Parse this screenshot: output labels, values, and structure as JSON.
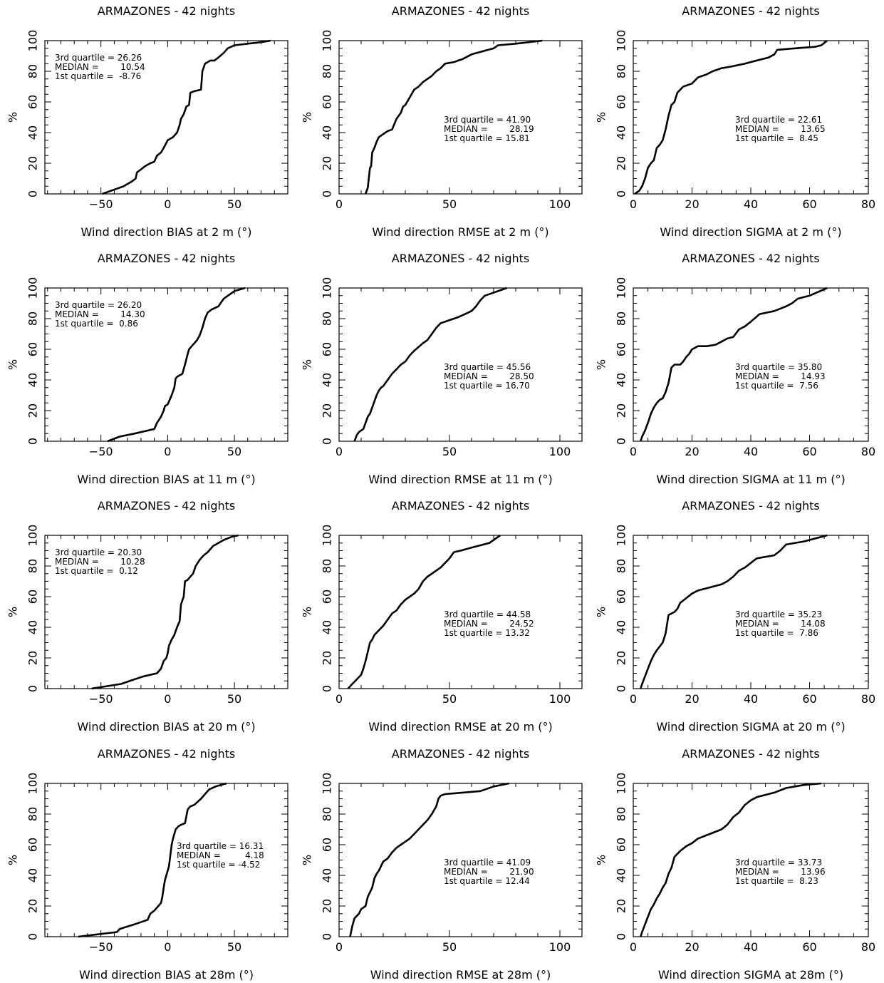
{
  "chart_data": [
    {
      "id": "p1",
      "type": "line",
      "title": "ARMAZONES - 42 nights",
      "xlabel": "Wind direction BIAS at 2 m (°)",
      "ylabel": "%",
      "xlim": [
        -92,
        90
      ],
      "ylim": [
        0,
        100
      ],
      "xticks": [
        -50,
        0,
        50
      ],
      "yticks": [
        0,
        20,
        40,
        60,
        80,
        100
      ],
      "stats": {
        "q3": "3rd quartile = 26.26",
        "median": "MEDIAN =        10.54",
        "q1": "1st quartile =  -8.76"
      },
      "x": [
        -49,
        -33,
        -27,
        -24,
        -23,
        -17,
        -13,
        -10,
        -8,
        -5,
        -3,
        0,
        4,
        7,
        9,
        10,
        12,
        14,
        16,
        17,
        20,
        25,
        26,
        28,
        30,
        32,
        35,
        38,
        42,
        45,
        50,
        60,
        70,
        77
      ],
      "y": [
        0,
        5,
        8,
        10,
        14,
        18,
        20,
        21,
        25,
        27,
        30,
        35,
        37,
        40,
        45,
        49,
        52,
        57,
        58,
        66,
        67,
        68,
        80,
        85,
        86,
        87,
        87,
        89,
        92,
        95,
        97,
        98,
        99,
        100
      ]
    },
    {
      "id": "p2",
      "type": "line",
      "title": "ARMAZONES - 42 nights",
      "xlabel": "Wind direction RMSE at 2 m (°)",
      "ylabel": "%",
      "xlim": [
        0,
        110
      ],
      "ylim": [
        0,
        100
      ],
      "xticks": [
        0,
        50,
        100
      ],
      "yticks": [
        0,
        20,
        40,
        60,
        80,
        100
      ],
      "stats": {
        "q3": "3rd quartile = 41.90",
        "median": "MEDIAN =        28.19",
        "q1": "1st quartile = 15.81"
      },
      "x": [
        12,
        13,
        14,
        14.5,
        15,
        16,
        17,
        18,
        20,
        22,
        24,
        26,
        28,
        29,
        30,
        32,
        34,
        36,
        38,
        40,
        42,
        44,
        46,
        48,
        52,
        54,
        56,
        60,
        70,
        72,
        80,
        92
      ],
      "y": [
        0,
        4,
        17,
        18,
        27,
        30,
        34,
        37,
        39,
        41,
        42,
        49,
        53,
        57,
        58,
        63,
        68,
        70,
        73,
        75,
        77,
        80,
        82,
        85,
        86,
        87,
        88,
        91,
        95,
        97,
        98,
        100
      ]
    },
    {
      "id": "p3",
      "type": "line",
      "title": "ARMAZONES - 42 nights",
      "xlabel": "Wind direction SIGMA at 2 m (°)",
      "ylabel": "%",
      "xlim": [
        0,
        80
      ],
      "ylim": [
        0,
        100
      ],
      "xticks": [
        0,
        20,
        40,
        60,
        80
      ],
      "yticks": [
        0,
        20,
        40,
        60,
        80,
        100
      ],
      "stats": {
        "q3": "3rd quartile = 22.61",
        "median": "MEDIAN =        13.65",
        "q1": "1st quartile =  8.45"
      },
      "x": [
        0.5,
        2,
        3,
        4,
        5,
        6,
        7,
        8,
        9,
        10,
        11,
        12,
        13,
        14,
        15,
        16,
        17,
        20,
        22,
        25,
        27,
        30,
        33,
        38,
        42,
        46,
        48,
        49,
        55,
        62,
        64,
        66
      ],
      "y": [
        0,
        2,
        5,
        10,
        17,
        20,
        22,
        30,
        32,
        35,
        42,
        51,
        58,
        60,
        66,
        68,
        70,
        72,
        76,
        78,
        80,
        82,
        83,
        85,
        87,
        89,
        91,
        94,
        95,
        96,
        97,
        100
      ]
    },
    {
      "id": "p4",
      "type": "line",
      "title": "ARMAZONES - 42 nights",
      "xlabel": "Wind direction BIAS at 11 m (°)",
      "ylabel": "%",
      "xlim": [
        -92,
        90
      ],
      "ylim": [
        0,
        100
      ],
      "xticks": [
        -50,
        0,
        50
      ],
      "yticks": [
        0,
        20,
        40,
        60,
        80,
        100
      ],
      "stats": {
        "q3": "3rd quartile = 26.20",
        "median": "MEDIAN =        14.30",
        "q1": "1st quartile =  0.86"
      },
      "x": [
        -45,
        -36,
        -25,
        -15,
        -10,
        -8,
        -5,
        -3,
        -2,
        0,
        2,
        3,
        5,
        6,
        7,
        9,
        11,
        13,
        15,
        16,
        18,
        22,
        24,
        26,
        28,
        30,
        33,
        38,
        42,
        50,
        58
      ],
      "y": [
        0,
        3,
        5,
        7,
        8,
        12,
        16,
        20,
        23,
        24,
        28,
        30,
        35,
        41,
        42,
        43,
        44,
        50,
        57,
        60,
        62,
        66,
        69,
        74,
        80,
        84,
        86,
        88,
        93,
        98,
        100
      ]
    },
    {
      "id": "p5",
      "type": "line",
      "title": "ARMAZONES - 42 nights",
      "xlabel": "Wind direction RMSE at 11 m (°)",
      "ylabel": "%",
      "xlim": [
        0,
        110
      ],
      "ylim": [
        0,
        100
      ],
      "xticks": [
        0,
        50,
        100
      ],
      "yticks": [
        0,
        20,
        40,
        60,
        80,
        100
      ],
      "stats": {
        "q3": "3rd quartile = 45.56",
        "median": "MEDIAN =        28.50",
        "q1": "1st quartile = 16.70"
      },
      "x": [
        7,
        8,
        9,
        11,
        12,
        13,
        14,
        15,
        16,
        17,
        18,
        19,
        20,
        22,
        24,
        26,
        28,
        30,
        32,
        34,
        38,
        40,
        42,
        44,
        46,
        48,
        50,
        54,
        60,
        62,
        64,
        66,
        76
      ],
      "y": [
        0,
        4,
        6,
        8,
        12,
        16,
        18,
        22,
        26,
        30,
        33,
        35,
        36,
        40,
        44,
        47,
        50,
        52,
        56,
        59,
        64,
        66,
        70,
        74,
        77,
        78,
        79,
        81,
        85,
        88,
        92,
        95,
        100
      ]
    },
    {
      "id": "p6",
      "type": "line",
      "title": "ARMAZONES - 42 nights",
      "xlabel": "Wind direction SIGMA at 11 m (°)",
      "ylabel": "%",
      "xlim": [
        0,
        80
      ],
      "ylim": [
        0,
        100
      ],
      "xticks": [
        0,
        20,
        40,
        60,
        80
      ],
      "yticks": [
        0,
        20,
        40,
        60,
        80,
        100
      ],
      "stats": {
        "q3": "3rd quartile = 35.80",
        "median": "MEDIAN =        14.93",
        "q1": "1st quartile =  7.56"
      },
      "x": [
        2.5,
        3,
        4,
        5,
        6,
        7,
        8,
        9,
        10,
        11,
        12,
        13,
        14,
        16,
        17,
        18,
        19,
        20,
        22,
        25,
        28,
        30,
        32,
        34,
        36,
        38,
        40,
        43,
        48,
        52,
        54,
        56,
        60,
        66
      ],
      "y": [
        0,
        3,
        7,
        12,
        18,
        22,
        25,
        27,
        28,
        32,
        38,
        48,
        50,
        50,
        52,
        55,
        57,
        60,
        62,
        62,
        63,
        65,
        67,
        68,
        73,
        75,
        78,
        83,
        85,
        88,
        90,
        93,
        95,
        100
      ]
    },
    {
      "id": "p7",
      "type": "line",
      "title": "ARMAZONES - 42 nights",
      "xlabel": "Wind direction BIAS at 20 m (°)",
      "ylabel": "%",
      "xlim": [
        -92,
        90
      ],
      "ylim": [
        0,
        100
      ],
      "xticks": [
        -50,
        0,
        50
      ],
      "yticks": [
        0,
        20,
        40,
        60,
        80,
        100
      ],
      "stats": {
        "q3": "3rd quartile = 20.30",
        "median": "MEDIAN =        10.28",
        "q1": "1st quartile =  0.12"
      },
      "x": [
        -57,
        -35,
        -25,
        -18,
        -8,
        -5,
        -3,
        -1,
        0,
        1,
        3,
        5,
        7,
        9,
        10,
        12,
        13,
        15,
        17,
        19,
        21,
        24,
        27,
        30,
        34,
        38,
        42,
        48,
        53
      ],
      "y": [
        0,
        3,
        6,
        8,
        10,
        13,
        18,
        20,
        23,
        28,
        32,
        35,
        40,
        44,
        55,
        60,
        70,
        71,
        73,
        75,
        80,
        84,
        87,
        89,
        93,
        95,
        97,
        99,
        100
      ]
    },
    {
      "id": "p8",
      "type": "line",
      "title": "ARMAZONES - 42 nights",
      "xlabel": "Wind direction RMSE at 20 m (°)",
      "ylabel": "%",
      "xlim": [
        0,
        110
      ],
      "ylim": [
        0,
        100
      ],
      "xticks": [
        0,
        50,
        100
      ],
      "yticks": [
        0,
        20,
        40,
        60,
        80,
        100
      ],
      "stats": {
        "q3": "3rd quartile = 44.58",
        "median": "MEDIAN =        24.52",
        "q1": "1st quartile = 13.32"
      },
      "x": [
        4,
        6,
        8,
        10,
        11,
        12,
        13,
        14,
        15,
        16,
        18,
        20,
        22,
        24,
        26,
        28,
        30,
        32,
        34,
        36,
        38,
        40,
        42,
        44,
        46,
        48,
        50,
        52,
        55,
        60,
        68,
        73
      ],
      "y": [
        0,
        3,
        6,
        9,
        13,
        18,
        24,
        30,
        32,
        35,
        38,
        41,
        45,
        49,
        51,
        55,
        58,
        60,
        62,
        65,
        70,
        73,
        75,
        77,
        79,
        82,
        85,
        89,
        90,
        92,
        95,
        100
      ]
    },
    {
      "id": "p9",
      "type": "line",
      "title": "ARMAZONES - 42 nights",
      "xlabel": "Wind direction SIGMA at 20 m (°)",
      "ylabel": "%",
      "xlim": [
        0,
        80
      ],
      "ylim": [
        0,
        100
      ],
      "xticks": [
        0,
        20,
        40,
        60,
        80
      ],
      "yticks": [
        0,
        20,
        40,
        60,
        80,
        100
      ],
      "stats": {
        "q3": "3rd quartile = 35.23",
        "median": "MEDIAN =        14.08",
        "q1": "1st quartile =  7.86"
      },
      "x": [
        2.5,
        3,
        4,
        5,
        6,
        7,
        8,
        10,
        11,
        12,
        14,
        15,
        16,
        18,
        20,
        22,
        26,
        30,
        32,
        34,
        36,
        38,
        40,
        42,
        48,
        50,
        52,
        58,
        66
      ],
      "y": [
        0,
        3,
        8,
        13,
        18,
        22,
        25,
        30,
        36,
        48,
        50,
        52,
        56,
        59,
        62,
        64,
        66,
        68,
        70,
        73,
        77,
        79,
        82,
        85,
        87,
        90,
        94,
        96,
        100
      ]
    },
    {
      "id": "p10",
      "type": "line",
      "title": "ARMAZONES - 42 nights",
      "xlabel": "Wind direction BIAS at 28m (°)",
      "ylabel": "%",
      "xlim": [
        -92,
        90
      ],
      "ylim": [
        0,
        100
      ],
      "xticks": [
        -50,
        0,
        50
      ],
      "yticks": [
        0,
        20,
        40,
        60,
        80,
        100
      ],
      "stats": {
        "q3": "3rd quartile = 16.31",
        "median": "MEDIAN =         4.18",
        "q1": "1st quartile = -4.52"
      },
      "x": [
        -67,
        -38,
        -36,
        -25,
        -15,
        -13,
        -10,
        -7,
        -5,
        -4,
        -3,
        -2,
        0,
        1,
        3,
        4,
        5,
        6,
        8,
        10,
        13,
        15,
        17,
        20,
        25,
        28,
        31,
        36,
        44
      ],
      "y": [
        0,
        3,
        5,
        8,
        11,
        15,
        17,
        20,
        22,
        26,
        32,
        37,
        43,
        46,
        60,
        64,
        67,
        70,
        72,
        73,
        74,
        83,
        85,
        86,
        90,
        93,
        96,
        98,
        100
      ]
    },
    {
      "id": "p11",
      "type": "line",
      "title": "ARMAZONES - 42 nights",
      "xlabel": "Wind direction RMSE at 28m (°)",
      "ylabel": "%",
      "xlim": [
        0,
        110
      ],
      "ylim": [
        0,
        100
      ],
      "xticks": [
        0,
        50,
        100
      ],
      "yticks": [
        0,
        20,
        40,
        60,
        80,
        100
      ],
      "stats": {
        "q3": "3rd quartile = 41.09",
        "median": "MEDIAN =        21.90",
        "q1": "1st quartile = 12.44"
      },
      "x": [
        5,
        6,
        7,
        9,
        10,
        12,
        13,
        14,
        15,
        16,
        17,
        18,
        20,
        22,
        24,
        26,
        28,
        30,
        32,
        34,
        36,
        38,
        40,
        42,
        44,
        45,
        46,
        48,
        56,
        64,
        70,
        77
      ],
      "y": [
        0,
        7,
        12,
        15,
        18,
        20,
        26,
        29,
        32,
        38,
        41,
        43,
        49,
        51,
        55,
        58,
        60,
        62,
        64,
        67,
        70,
        73,
        76,
        80,
        85,
        90,
        92,
        93,
        94,
        95,
        98,
        100
      ]
    },
    {
      "id": "p12",
      "type": "line",
      "title": "ARMAZONES - 42 nights",
      "xlabel": "Wind direction SIGMA at 28m (°)",
      "ylabel": "%",
      "xlim": [
        0,
        80
      ],
      "ylim": [
        0,
        100
      ],
      "xticks": [
        0,
        20,
        40,
        60,
        80
      ],
      "yticks": [
        0,
        20,
        40,
        60,
        80,
        100
      ],
      "stats": {
        "q3": "3rd quartile = 33.73",
        "median": "MEDIAN =        13.96",
        "q1": "1st quartile =  8.23"
      },
      "x": [
        2.5,
        3,
        4,
        5,
        6,
        7,
        8,
        9,
        10,
        11,
        12,
        13,
        14,
        16,
        18,
        20,
        22,
        26,
        30,
        32,
        34,
        36,
        38,
        40,
        42,
        48,
        52,
        58,
        64
      ],
      "y": [
        0,
        3,
        8,
        13,
        18,
        21,
        25,
        28,
        32,
        35,
        41,
        45,
        52,
        56,
        59,
        61,
        64,
        67,
        70,
        73,
        78,
        81,
        86,
        89,
        91,
        94,
        97,
        99,
        100
      ]
    }
  ]
}
